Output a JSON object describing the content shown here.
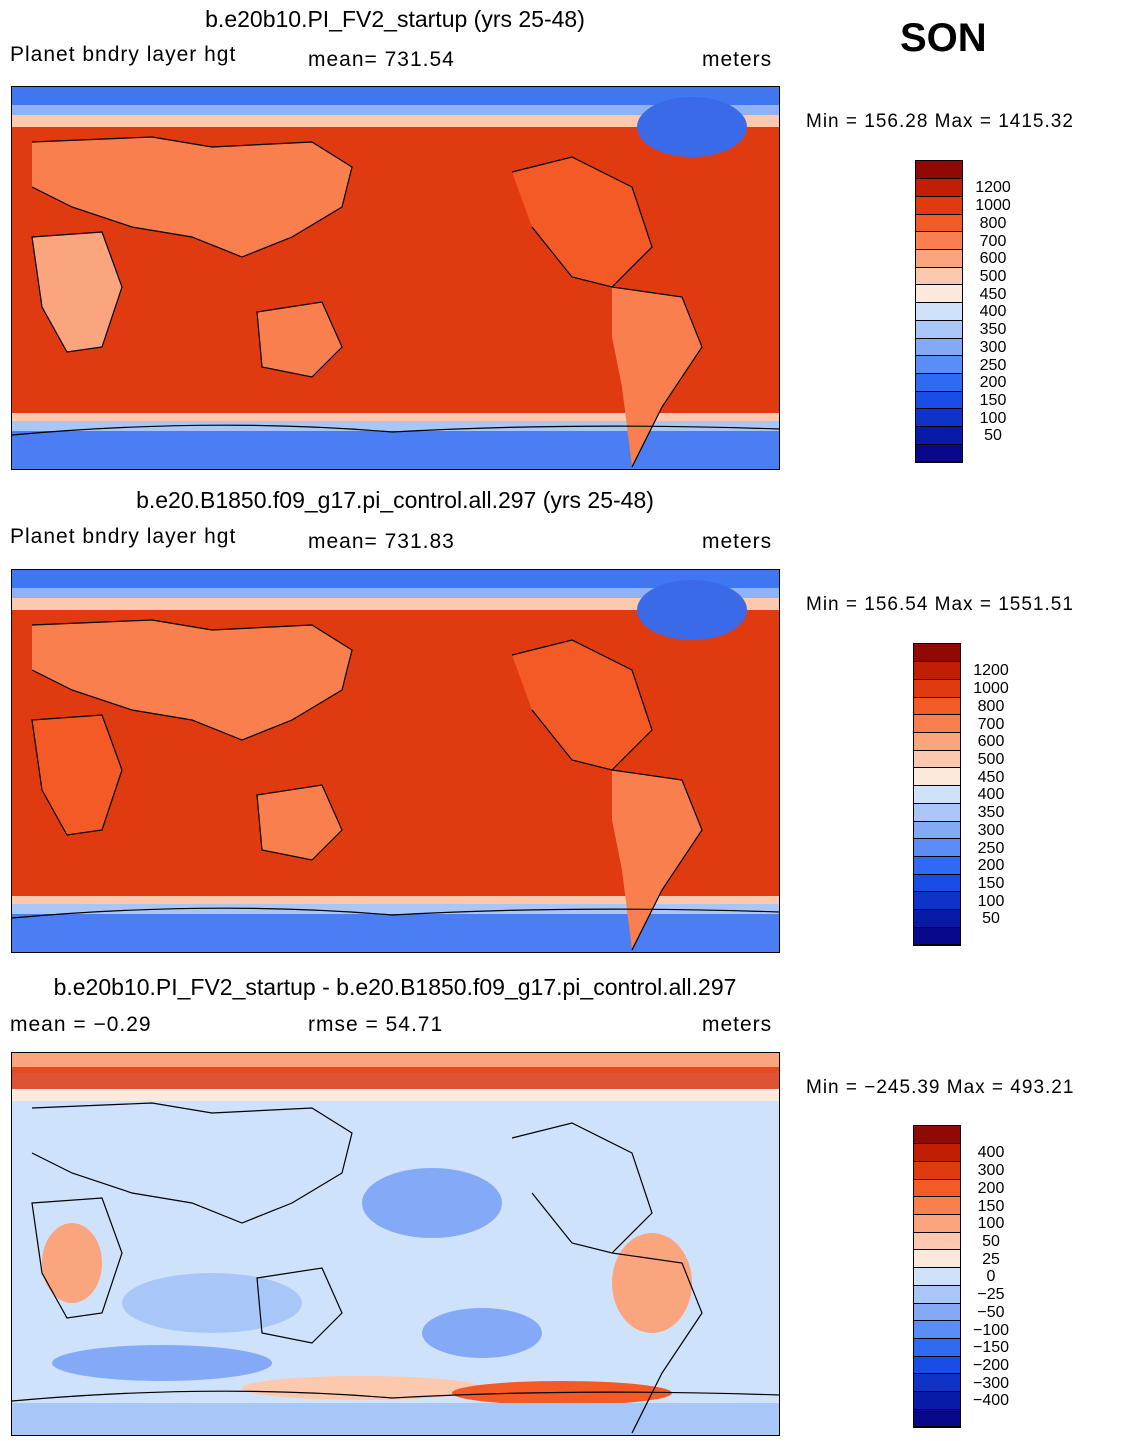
{
  "season": "SON",
  "panels": [
    {
      "title": "b.e20b10.PI_FV2_startup (yrs 25-48)",
      "left_label": "Planet bndry layer hgt",
      "mid_label": "mean=  731.54",
      "right_label": "meters",
      "minmax": "Min  =  156.28  Max  =  1415.32",
      "colorbar": {
        "colors": [
          "#08088c",
          "#0a1aa8",
          "#0f33c8",
          "#1a4de6",
          "#2e6af2",
          "#5a8df5",
          "#84aaf7",
          "#a8c6f8",
          "#cfe2fb",
          "#fde9dc",
          "#fcc8ae",
          "#fba57f",
          "#f97f4f",
          "#f45a26",
          "#e03a10",
          "#c21e06",
          "#8f0a02"
        ],
        "labels": [
          "1200",
          "1000",
          "800",
          "700",
          "600",
          "500",
          "450",
          "400",
          "350",
          "300",
          "250",
          "200",
          "150",
          "100",
          "50"
        ]
      }
    },
    {
      "title": "b.e20.B1850.f09_g17.pi_control.all.297 (yrs 25-48)",
      "left_label": "Planet bndry layer hgt",
      "mid_label": "mean=  731.83",
      "right_label": "meters",
      "minmax": "Min  =  156.54  Max  =  1551.51",
      "colorbar": {
        "colors": [
          "#08088c",
          "#0a1aa8",
          "#0f33c8",
          "#1a4de6",
          "#2e6af2",
          "#5a8df5",
          "#84aaf7",
          "#a8c6f8",
          "#cfe2fb",
          "#fde9dc",
          "#fcc8ae",
          "#fba57f",
          "#f97f4f",
          "#f45a26",
          "#e03a10",
          "#c21e06",
          "#8f0a02"
        ],
        "labels": [
          "1200",
          "1000",
          "800",
          "700",
          "600",
          "500",
          "450",
          "400",
          "350",
          "300",
          "250",
          "200",
          "150",
          "100",
          "50"
        ]
      }
    },
    {
      "title": "b.e20b10.PI_FV2_startup - b.e20.B1850.f09_g17.pi_control.all.297",
      "left_label": "mean =   −0.29",
      "mid_label": "rmse =    54.71",
      "right_label": "meters",
      "minmax": "Min  =  −245.39  Max  =  493.21",
      "colorbar": {
        "colors": [
          "#08088c",
          "#0a1aa8",
          "#0f33c8",
          "#1a4de6",
          "#2e6af2",
          "#5a8df5",
          "#84aaf7",
          "#a8c6f8",
          "#cfe2fb",
          "#fde9dc",
          "#fcc8ae",
          "#fba57f",
          "#f97f4f",
          "#f45a26",
          "#e03a10",
          "#c21e06",
          "#8f0a02"
        ],
        "labels": [
          "400",
          "300",
          "200",
          "150",
          "100",
          "50",
          "25",
          "0",
          "−25",
          "−50",
          "−100",
          "−150",
          "−200",
          "−300",
          "−400"
        ]
      }
    }
  ],
  "chart_data": [
    {
      "type": "heatmap",
      "title": "b.e20b10.PI_FV2_startup (yrs 25-48)",
      "variable": "Planet bndry layer hgt",
      "units": "meters",
      "mean": 731.54,
      "min": 156.28,
      "max": 1415.32,
      "levels": [
        50,
        100,
        150,
        200,
        250,
        300,
        350,
        400,
        450,
        500,
        600,
        700,
        800,
        1000,
        1200
      ]
    },
    {
      "type": "heatmap",
      "title": "b.e20.B1850.f09_g17.pi_control.all.297 (yrs 25-48)",
      "variable": "Planet bndry layer hgt",
      "units": "meters",
      "mean": 731.83,
      "min": 156.54,
      "max": 1551.51,
      "levels": [
        50,
        100,
        150,
        200,
        250,
        300,
        350,
        400,
        450,
        500,
        600,
        700,
        800,
        1000,
        1200
      ]
    },
    {
      "type": "heatmap",
      "title": "b.e20b10.PI_FV2_startup - b.e20.B1850.f09_g17.pi_control.all.297",
      "units": "meters",
      "mean": -0.29,
      "rmse": 54.71,
      "min": -245.39,
      "max": 493.21,
      "levels": [
        -400,
        -300,
        -200,
        -150,
        -100,
        -50,
        -25,
        0,
        25,
        50,
        100,
        150,
        200,
        300,
        400
      ]
    }
  ]
}
